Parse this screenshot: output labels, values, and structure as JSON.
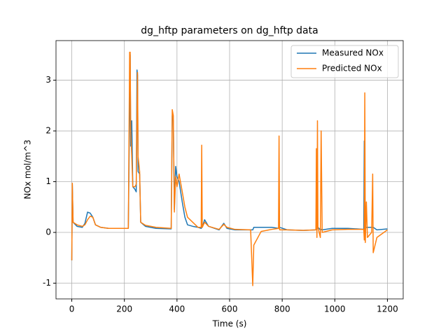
{
  "chart_data": {
    "type": "line",
    "title": "dg_hftp parameters on dg_hftp data",
    "x_label": "Time (s)",
    "y_label": "NOx mol/m^3",
    "x": [
      0,
      2,
      5,
      20,
      40,
      50,
      60,
      70,
      80,
      90,
      110,
      140,
      215,
      220,
      222,
      224,
      228,
      232,
      240,
      245,
      248,
      250,
      252,
      258,
      262,
      280,
      320,
      378,
      382,
      386,
      390,
      395,
      400,
      408,
      420,
      430,
      440,
      460,
      480,
      492,
      494,
      496,
      505,
      520,
      560,
      578,
      590,
      620,
      680,
      688,
      692,
      720,
      760,
      786,
      788,
      790,
      820,
      880,
      928,
      930,
      932,
      934,
      936,
      945,
      948,
      952,
      990,
      1050,
      1110,
      1112,
      1114,
      1116,
      1120,
      1124,
      1140,
      1144,
      1146,
      1160,
      1200
    ],
    "series": [
      {
        "name": "Measured NOx",
        "color": "#1f77b4",
        "values": [
          -0.55,
          0.95,
          0.2,
          0.12,
          0.1,
          0.18,
          0.4,
          0.38,
          0.3,
          0.15,
          0.1,
          0.08,
          0.08,
          2.5,
          3.5,
          1.7,
          2.2,
          0.9,
          0.85,
          0.8,
          3.2,
          3.1,
          1.2,
          1.15,
          0.2,
          0.12,
          0.08,
          0.07,
          2.3,
          2.2,
          0.45,
          1.3,
          1.1,
          1.0,
          0.6,
          0.3,
          0.15,
          0.12,
          0.1,
          0.08,
          0.1,
          0.1,
          0.25,
          0.12,
          0.05,
          0.18,
          0.08,
          0.05,
          0.05,
          0.05,
          0.1,
          0.1,
          0.1,
          0.08,
          0.1,
          0.1,
          0.05,
          0.04,
          0.05,
          0.1,
          0.05,
          0.1,
          0.1,
          0.05,
          0.06,
          0.05,
          0.08,
          0.08,
          0.06,
          1.8,
          0.1,
          0.1,
          0.1,
          0.1,
          0.1,
          0.1,
          0.1,
          0.05,
          0.07
        ]
      },
      {
        "name": "Predicted NOx",
        "color": "#ff7f0e",
        "values": [
          -0.55,
          0.97,
          0.2,
          0.15,
          0.12,
          0.15,
          0.25,
          0.32,
          0.3,
          0.15,
          0.1,
          0.08,
          0.08,
          3.55,
          3.55,
          2.0,
          1.5,
          0.9,
          0.9,
          0.95,
          2.4,
          3.15,
          1.5,
          1.2,
          0.2,
          0.14,
          0.1,
          0.08,
          2.42,
          2.3,
          0.4,
          1.1,
          0.9,
          1.15,
          0.8,
          0.5,
          0.3,
          0.2,
          0.1,
          0.1,
          1.72,
          0.1,
          0.2,
          0.12,
          0.06,
          0.16,
          0.1,
          0.06,
          0.05,
          -1.05,
          -0.25,
          0.02,
          0.06,
          0.08,
          1.9,
          0.05,
          0.05,
          0.04,
          0.05,
          1.65,
          -0.1,
          2.2,
          0.1,
          -0.1,
          2.0,
          0.0,
          0.05,
          0.06,
          0.06,
          -0.15,
          2.75,
          -0.2,
          0.6,
          -0.1,
          0.0,
          1.15,
          -0.4,
          -0.1,
          0.05
        ]
      }
    ],
    "xlim": [
      -60,
      1260
    ],
    "ylim": [
      -1.31,
      3.78
    ],
    "xticks": [
      0,
      200,
      400,
      600,
      800,
      1000,
      1200
    ],
    "yticks": [
      -1,
      0,
      1,
      2,
      3
    ],
    "grid": true,
    "legend": "upper right"
  }
}
